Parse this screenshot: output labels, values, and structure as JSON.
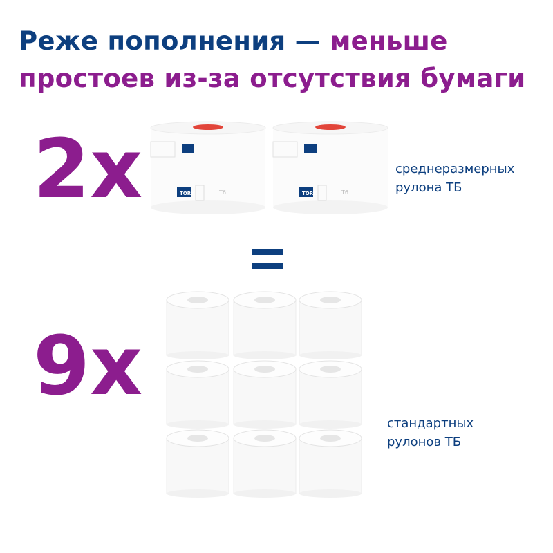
{
  "headline": {
    "line1_navy": "Реже пополнения — ",
    "line1_purple": "меньше",
    "line2": "простоев из-за отсутствия бумаги"
  },
  "top": {
    "multiplier": "2x",
    "label_line1": "среднеразмерных",
    "label_line2": "рулона ТБ",
    "roll_count": 2,
    "brand": "TORK",
    "dispenser_code": "T6"
  },
  "equals": "=",
  "bottom": {
    "multiplier": "9x",
    "label_line1": "стандартных",
    "label_line2": "рулонов ТБ",
    "roll_count": 9
  },
  "colors": {
    "navy": "#0d3f7f",
    "purple": "#8c1d8e",
    "accent_red": "#e2453a"
  }
}
